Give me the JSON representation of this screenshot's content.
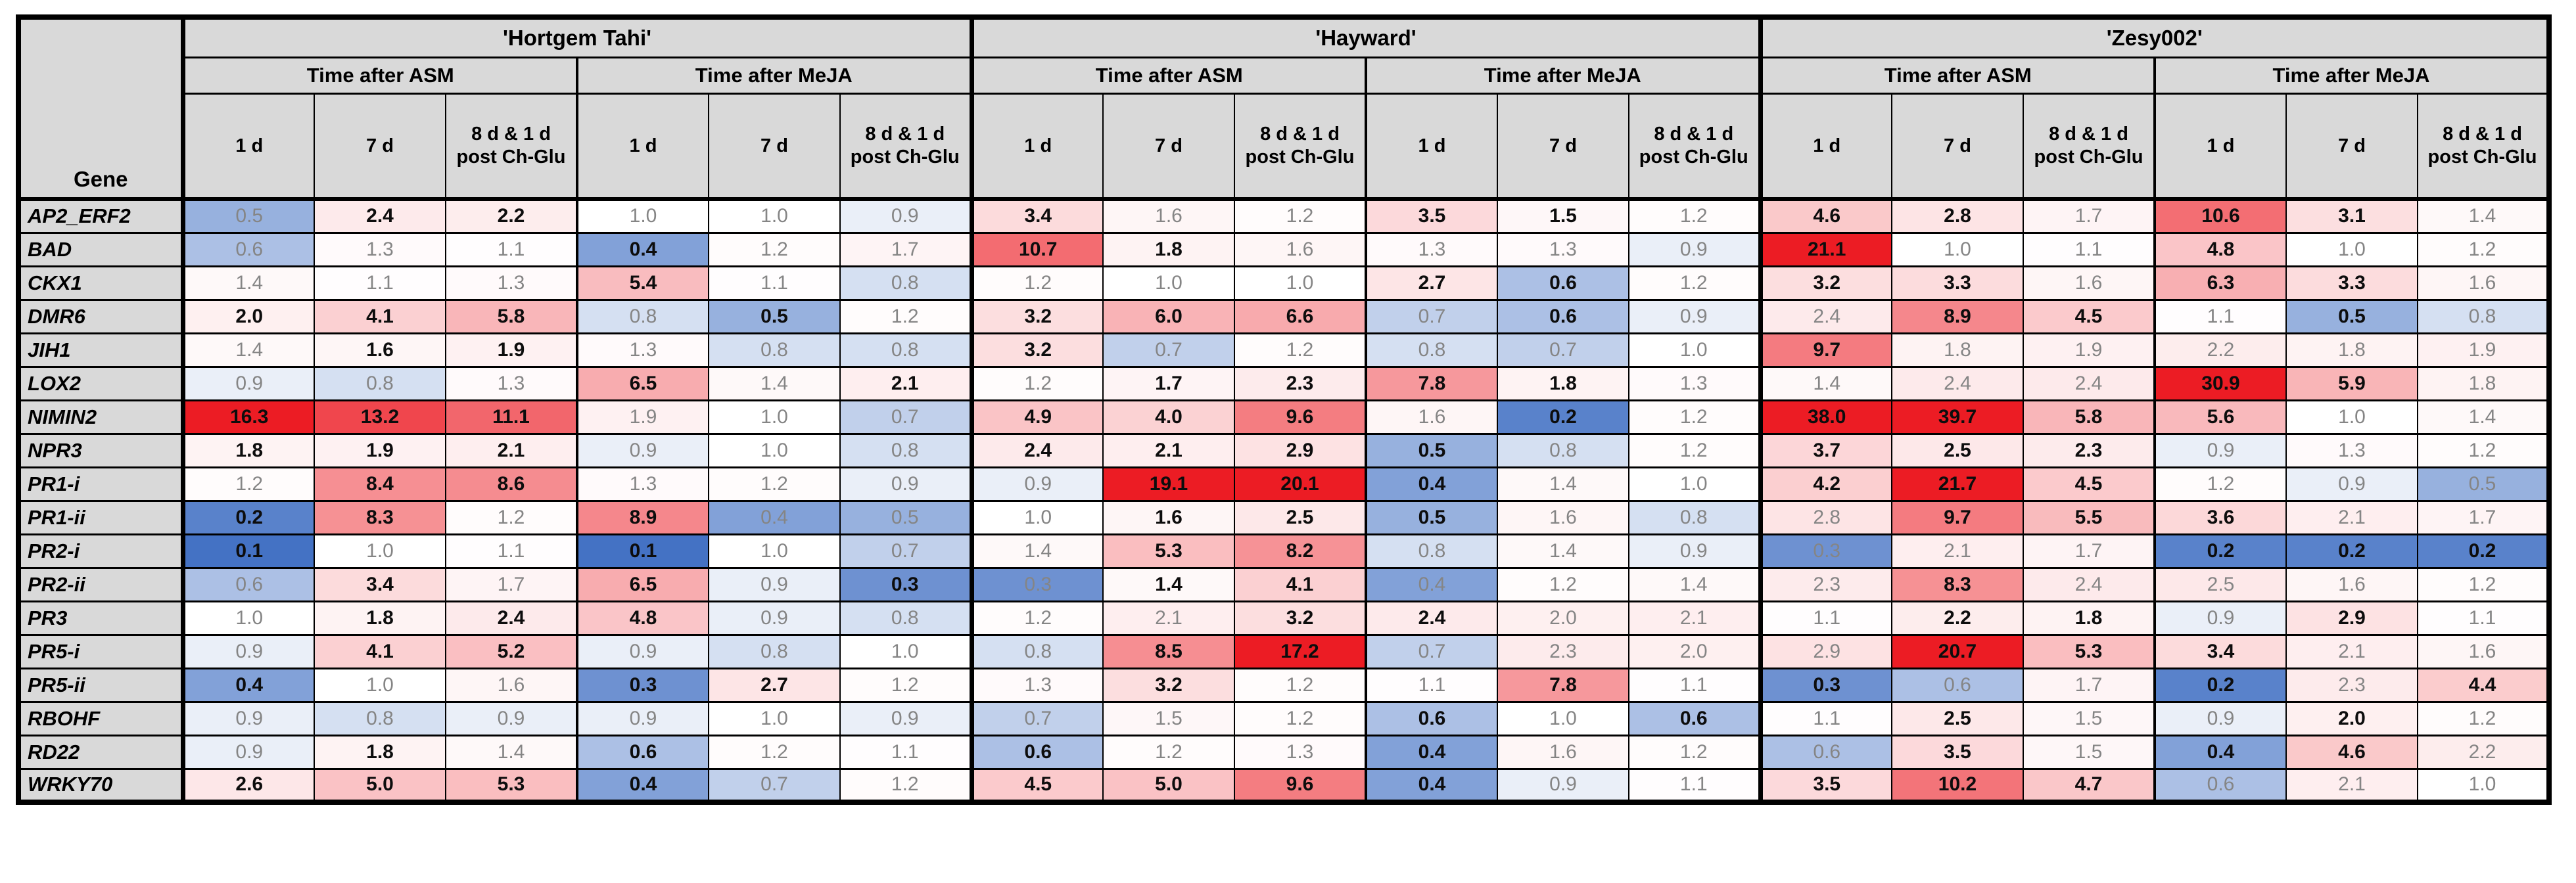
{
  "chart_data": {
    "type": "heatmap",
    "title": "",
    "row_label_header": "Gene",
    "column_groups": [
      {
        "cultivar": "'Hortgem Tahi'",
        "treatments": [
          "Time after ASM",
          "Time after MeJA"
        ]
      },
      {
        "cultivar": "'Hayward'",
        "treatments": [
          "Time after ASM",
          "Time after MeJA"
        ]
      },
      {
        "cultivar": "'Zesy002'",
        "treatments": [
          "Time after ASM",
          "Time after MeJA"
        ]
      }
    ],
    "timepoints": [
      [
        "1 d"
      ],
      [
        "7 d"
      ],
      [
        "8 d & 1 d",
        "post Ch-Glu"
      ]
    ],
    "rows": [
      {
        "gene": "AP2_ERF2",
        "values": [
          0.5,
          2.4,
          2.2,
          1.0,
          1.0,
          0.9,
          3.4,
          1.6,
          1.2,
          3.5,
          1.5,
          1.2,
          4.6,
          2.8,
          1.7,
          10.6,
          3.1,
          1.4
        ],
        "bold": [
          0,
          1,
          1,
          0,
          0,
          0,
          1,
          0,
          0,
          1,
          1,
          0,
          1,
          1,
          0,
          1,
          1,
          0
        ]
      },
      {
        "gene": "BAD",
        "values": [
          0.6,
          1.3,
          1.1,
          0.4,
          1.2,
          1.7,
          10.7,
          1.8,
          1.6,
          1.3,
          1.3,
          0.9,
          21.1,
          1.0,
          1.1,
          4.8,
          1.0,
          1.2
        ],
        "bold": [
          0,
          0,
          0,
          1,
          0,
          0,
          1,
          1,
          0,
          0,
          0,
          0,
          1,
          0,
          0,
          1,
          0,
          0
        ]
      },
      {
        "gene": "CKX1",
        "values": [
          1.4,
          1.1,
          1.3,
          5.4,
          1.1,
          0.8,
          1.2,
          1.0,
          1.0,
          2.7,
          0.6,
          1.2,
          3.2,
          3.3,
          1.6,
          6.3,
          3.3,
          1.6
        ],
        "bold": [
          0,
          0,
          0,
          1,
          0,
          0,
          0,
          0,
          0,
          1,
          1,
          0,
          1,
          1,
          0,
          1,
          1,
          0
        ]
      },
      {
        "gene": "DMR6",
        "values": [
          2.0,
          4.1,
          5.8,
          0.8,
          0.5,
          1.2,
          3.2,
          6.0,
          6.6,
          0.7,
          0.6,
          0.9,
          2.4,
          8.9,
          4.5,
          1.1,
          0.5,
          0.8
        ],
        "bold": [
          1,
          1,
          1,
          0,
          1,
          0,
          1,
          1,
          1,
          0,
          1,
          0,
          0,
          1,
          1,
          0,
          1,
          0
        ]
      },
      {
        "gene": "JIH1",
        "values": [
          1.4,
          1.6,
          1.9,
          1.3,
          0.8,
          0.8,
          3.2,
          0.7,
          1.2,
          0.8,
          0.7,
          1.0,
          9.7,
          1.8,
          1.9,
          2.2,
          1.8,
          1.9
        ],
        "bold": [
          0,
          1,
          1,
          0,
          0,
          0,
          1,
          0,
          0,
          0,
          0,
          0,
          1,
          0,
          0,
          0,
          0,
          0
        ]
      },
      {
        "gene": "LOX2",
        "values": [
          0.9,
          0.8,
          1.3,
          6.5,
          1.4,
          2.1,
          1.2,
          1.7,
          2.3,
          7.8,
          1.8,
          1.3,
          1.4,
          2.4,
          2.4,
          30.9,
          5.9,
          1.8
        ],
        "bold": [
          0,
          0,
          0,
          1,
          0,
          1,
          0,
          1,
          1,
          1,
          1,
          0,
          0,
          0,
          0,
          1,
          1,
          0
        ]
      },
      {
        "gene": "NIMIN2",
        "values": [
          16.3,
          13.2,
          11.1,
          1.9,
          1.0,
          0.7,
          4.9,
          4.0,
          9.6,
          1.6,
          0.2,
          1.2,
          38.0,
          39.7,
          5.8,
          5.6,
          1.0,
          1.4
        ],
        "bold": [
          1,
          1,
          1,
          0,
          0,
          0,
          1,
          1,
          1,
          0,
          1,
          0,
          1,
          1,
          1,
          1,
          0,
          0
        ]
      },
      {
        "gene": "NPR3",
        "values": [
          1.8,
          1.9,
          2.1,
          0.9,
          1.0,
          0.8,
          2.4,
          2.1,
          2.9,
          0.5,
          0.8,
          1.2,
          3.7,
          2.5,
          2.3,
          0.9,
          1.3,
          1.2
        ],
        "bold": [
          1,
          1,
          1,
          0,
          0,
          0,
          1,
          1,
          1,
          1,
          0,
          0,
          1,
          1,
          1,
          0,
          0,
          0
        ]
      },
      {
        "gene": "PR1-i",
        "values": [
          1.2,
          8.4,
          8.6,
          1.3,
          1.2,
          0.9,
          0.9,
          19.1,
          20.1,
          0.4,
          1.4,
          1.0,
          4.2,
          21.7,
          4.5,
          1.2,
          0.9,
          0.5
        ],
        "bold": [
          0,
          1,
          1,
          0,
          0,
          0,
          0,
          1,
          1,
          1,
          0,
          0,
          1,
          1,
          1,
          0,
          0,
          0
        ]
      },
      {
        "gene": "PR1-ii",
        "values": [
          0.2,
          8.3,
          1.2,
          8.9,
          0.4,
          0.5,
          1.0,
          1.6,
          2.5,
          0.5,
          1.6,
          0.8,
          2.8,
          9.7,
          5.5,
          3.6,
          2.1,
          1.7
        ],
        "bold": [
          1,
          1,
          0,
          1,
          0,
          0,
          0,
          1,
          1,
          1,
          0,
          0,
          0,
          1,
          1,
          1,
          0,
          0
        ]
      },
      {
        "gene": "PR2-i",
        "values": [
          0.1,
          1.0,
          1.1,
          0.1,
          1.0,
          0.7,
          1.4,
          5.3,
          8.2,
          0.8,
          1.4,
          0.9,
          0.3,
          2.1,
          1.7,
          0.2,
          0.2,
          0.2
        ],
        "bold": [
          1,
          0,
          0,
          1,
          0,
          0,
          0,
          1,
          1,
          0,
          0,
          0,
          0,
          0,
          0,
          1,
          1,
          1
        ]
      },
      {
        "gene": "PR2-ii",
        "values": [
          0.6,
          3.4,
          1.7,
          6.5,
          0.9,
          0.3,
          0.3,
          1.4,
          4.1,
          0.4,
          1.2,
          1.4,
          2.3,
          8.3,
          2.4,
          2.5,
          1.6,
          1.2
        ],
        "bold": [
          0,
          1,
          0,
          1,
          0,
          1,
          0,
          1,
          1,
          0,
          0,
          0,
          0,
          1,
          0,
          0,
          0,
          0
        ]
      },
      {
        "gene": "PR3",
        "values": [
          1.0,
          1.8,
          2.4,
          4.8,
          0.9,
          0.8,
          1.2,
          2.1,
          3.2,
          2.4,
          2.0,
          2.1,
          1.1,
          2.2,
          1.8,
          0.9,
          2.9,
          1.1
        ],
        "bold": [
          0,
          1,
          1,
          1,
          0,
          0,
          0,
          0,
          1,
          1,
          0,
          0,
          0,
          1,
          1,
          0,
          1,
          0
        ]
      },
      {
        "gene": "PR5-i",
        "values": [
          0.9,
          4.1,
          5.2,
          0.9,
          0.8,
          1.0,
          0.8,
          8.5,
          17.2,
          0.7,
          2.3,
          2.0,
          2.9,
          20.7,
          5.3,
          3.4,
          2.1,
          1.6
        ],
        "bold": [
          0,
          1,
          1,
          0,
          0,
          0,
          0,
          1,
          1,
          0,
          0,
          0,
          0,
          1,
          1,
          1,
          0,
          0
        ]
      },
      {
        "gene": "PR5-ii",
        "values": [
          0.4,
          1.0,
          1.6,
          0.3,
          2.7,
          1.2,
          1.3,
          3.2,
          1.2,
          1.1,
          7.8,
          1.1,
          0.3,
          0.6,
          1.7,
          0.2,
          2.3,
          4.4
        ],
        "bold": [
          1,
          0,
          0,
          1,
          1,
          0,
          0,
          1,
          0,
          0,
          1,
          0,
          1,
          0,
          0,
          1,
          0,
          1
        ]
      },
      {
        "gene": "RBOHF",
        "values": [
          0.9,
          0.8,
          0.9,
          0.9,
          1.0,
          0.9,
          0.7,
          1.5,
          1.2,
          0.6,
          1.0,
          0.6,
          1.1,
          2.5,
          1.5,
          0.9,
          2.0,
          1.2
        ],
        "bold": [
          0,
          0,
          0,
          0,
          0,
          0,
          0,
          0,
          0,
          1,
          0,
          1,
          0,
          1,
          0,
          0,
          1,
          0
        ]
      },
      {
        "gene": "RD22",
        "values": [
          0.9,
          1.8,
          1.4,
          0.6,
          1.2,
          1.1,
          0.6,
          1.2,
          1.3,
          0.4,
          1.6,
          1.2,
          0.6,
          3.5,
          1.5,
          0.4,
          4.6,
          2.2
        ],
        "bold": [
          0,
          1,
          0,
          1,
          0,
          0,
          1,
          0,
          0,
          1,
          0,
          0,
          0,
          1,
          0,
          1,
          1,
          0
        ]
      },
      {
        "gene": "WRKY70",
        "values": [
          2.6,
          5.0,
          5.3,
          0.4,
          0.7,
          1.2,
          4.5,
          5.0,
          9.6,
          0.4,
          0.9,
          1.1,
          3.5,
          10.2,
          4.7,
          0.6,
          2.1,
          1.0
        ],
        "bold": [
          1,
          1,
          1,
          1,
          0,
          0,
          1,
          1,
          1,
          1,
          0,
          0,
          1,
          1,
          1,
          0,
          0,
          0
        ]
      }
    ],
    "colormap": {
      "style": "diverging",
      "mid_value": 1,
      "mid_color": "#FFFFFF",
      "high_color": "#EC1C24",
      "high_saturation_value": 16,
      "low_color": "#4472C4",
      "low_saturation_value": 0.1,
      "value_format": "one_decimal",
      "bold_means": "emphasized value",
      "normal_text_color": "#858585",
      "bold_text_color": "#0D0D0D",
      "header_background": "#D9D9D9"
    }
  }
}
